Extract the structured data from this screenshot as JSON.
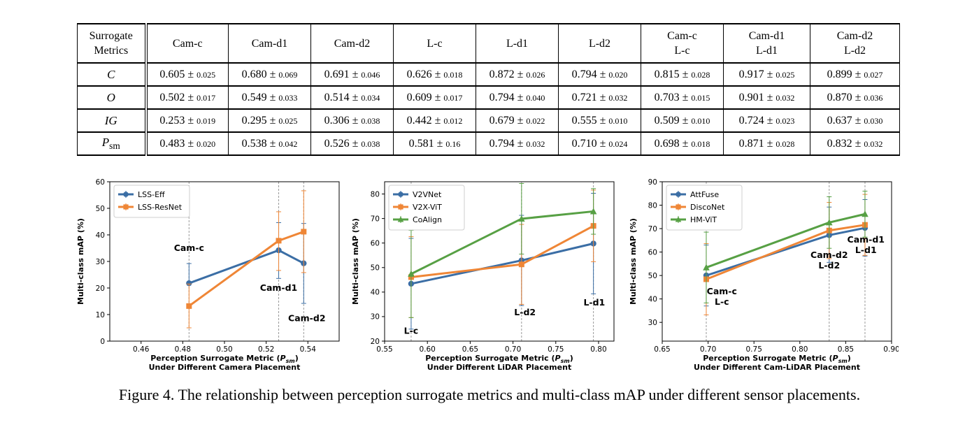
{
  "table": {
    "header": {
      "metric_col": [
        "Surrogate",
        "Metrics"
      ],
      "columns": [
        [
          "Cam-c"
        ],
        [
          "Cam-d1"
        ],
        [
          "Cam-d2"
        ],
        [
          "L-c"
        ],
        [
          "L-d1"
        ],
        [
          "L-d2"
        ],
        [
          "Cam-c",
          "L-c"
        ],
        [
          "Cam-d1",
          "L-d1"
        ],
        [
          "Cam-d2",
          "L-d2"
        ]
      ]
    },
    "pm_symbol": "±",
    "rows": [
      {
        "metric": "C",
        "metric_sub": "",
        "cells": [
          {
            "v": "0.605",
            "e": "0.025"
          },
          {
            "v": "0.680",
            "e": "0.069"
          },
          {
            "v": "0.691",
            "e": "0.046"
          },
          {
            "v": "0.626",
            "e": "0.018"
          },
          {
            "v": "0.872",
            "e": "0.026"
          },
          {
            "v": "0.794",
            "e": "0.020"
          },
          {
            "v": "0.815",
            "e": "0.028"
          },
          {
            "v": "0.917",
            "e": "0.025"
          },
          {
            "v": "0.899",
            "e": "0.027"
          }
        ]
      },
      {
        "metric": "O",
        "metric_sub": "",
        "cells": [
          {
            "v": "0.502",
            "e": "0.017"
          },
          {
            "v": "0.549",
            "e": "0.033"
          },
          {
            "v": "0.514",
            "e": "0.034"
          },
          {
            "v": "0.609",
            "e": "0.017"
          },
          {
            "v": "0.794",
            "e": "0.040"
          },
          {
            "v": "0.721",
            "e": "0.032"
          },
          {
            "v": "0.703",
            "e": "0.015"
          },
          {
            "v": "0.901",
            "e": "0.032"
          },
          {
            "v": "0.870",
            "e": "0.036"
          }
        ]
      },
      {
        "metric": "IG",
        "metric_sub": "",
        "cells": [
          {
            "v": "0.253",
            "e": "0.019"
          },
          {
            "v": "0.295",
            "e": "0.025"
          },
          {
            "v": "0.306",
            "e": "0.038"
          },
          {
            "v": "0.442",
            "e": "0.012"
          },
          {
            "v": "0.679",
            "e": "0.022"
          },
          {
            "v": "0.555",
            "e": "0.010"
          },
          {
            "v": "0.509",
            "e": "0.010"
          },
          {
            "v": "0.724",
            "e": "0.023"
          },
          {
            "v": "0.637",
            "e": "0.030"
          }
        ]
      },
      {
        "metric": "P",
        "metric_sub": "sm",
        "cells": [
          {
            "v": "0.483",
            "e": "0.020"
          },
          {
            "v": "0.538",
            "e": "0.042"
          },
          {
            "v": "0.526",
            "e": "0.038"
          },
          {
            "v": "0.581",
            "e": "0.16"
          },
          {
            "v": "0.794",
            "e": "0.032"
          },
          {
            "v": "0.710",
            "e": "0.024"
          },
          {
            "v": "0.698",
            "e": "0.018"
          },
          {
            "v": "0.871",
            "e": "0.028"
          },
          {
            "v": "0.832",
            "e": "0.032"
          }
        ]
      }
    ]
  },
  "chart_data": [
    {
      "type": "line",
      "ylabel": "Multi-class mAP (%)",
      "xlabel_line1_pre": "Perception Surrogate Metric (",
      "xlabel_sym": "P",
      "xlabel_sub": "sm",
      "xlabel_line1_post": ")",
      "xlabel_line2": "Under Different Camera Placement",
      "xlim": [
        0.445,
        0.555
      ],
      "ylim": [
        0,
        60
      ],
      "xticks": [
        0.46,
        0.48,
        0.5,
        0.52,
        0.54
      ],
      "xtick_labels": [
        "0.46",
        "0.48",
        "0.50",
        "0.52",
        "0.54"
      ],
      "yticks": [
        0,
        10,
        20,
        30,
        40,
        50,
        60
      ],
      "ytick_labels": [
        "0",
        "10",
        "20",
        "30",
        "40",
        "50",
        "60"
      ],
      "vlines": [
        0.483,
        0.526,
        0.538
      ],
      "legend_position": "top-left",
      "annotations": [
        {
          "text": [
            "Cam-c"
          ],
          "x": 0.483,
          "y": 34
        },
        {
          "text": [
            "Cam-d1"
          ],
          "x": 0.526,
          "y": 19
        },
        {
          "text": [
            "Cam-d2"
          ],
          "x": 0.5395,
          "y": 7.5
        }
      ],
      "series": [
        {
          "name": "LSS-Eff",
          "color": "#3b6ea5",
          "marker": "circle",
          "x": [
            0.483,
            0.526,
            0.538
          ],
          "y": [
            21.8,
            34.2,
            29.3
          ],
          "err_low": [
            21.4,
            23.6,
            14.2
          ],
          "err_high": [
            29.2,
            44.6,
            44.3
          ]
        },
        {
          "name": "LSS-ResNet",
          "color": "#ef8636",
          "marker": "square",
          "x": [
            0.483,
            0.526,
            0.538
          ],
          "y": [
            13.2,
            37.8,
            41.2
          ],
          "err_low": [
            5.0,
            26.6,
            25.8
          ],
          "err_high": [
            21.5,
            48.7,
            56.6
          ]
        }
      ]
    },
    {
      "type": "line",
      "ylabel": "Multi-class mAP (%)",
      "xlabel_line1_pre": "Perception Surrogate Metric (",
      "xlabel_sym": "P",
      "xlabel_sub": "sm",
      "xlabel_line1_post": ")",
      "xlabel_line2": "Under Different LiDAR Placement",
      "xlim": [
        0.55,
        0.818
      ],
      "ylim": [
        20,
        85
      ],
      "xticks": [
        0.55,
        0.6,
        0.65,
        0.7,
        0.75,
        0.8
      ],
      "xtick_labels": [
        "0.55",
        "0.60",
        "0.65",
        "0.70",
        "0.75",
        "0.80"
      ],
      "yticks": [
        20,
        30,
        40,
        50,
        60,
        70,
        80
      ],
      "ytick_labels": [
        "20",
        "30",
        "40",
        "50",
        "60",
        "70",
        "80"
      ],
      "vlines": [
        0.581,
        0.71,
        0.794
      ],
      "legend_position": "top-left",
      "annotations": [
        {
          "text": [
            "L-c"
          ],
          "x": 0.581,
          "y": 23
        },
        {
          "text": [
            "L-d2"
          ],
          "x": 0.714,
          "y": 30.5
        },
        {
          "text": [
            "L-d1"
          ],
          "x": 0.795,
          "y": 34.5
        }
      ],
      "series": [
        {
          "name": "V2VNet",
          "color": "#3b6ea5",
          "marker": "circle",
          "x": [
            0.581,
            0.71,
            0.794
          ],
          "y": [
            43.4,
            52.9,
            59.8
          ],
          "err_low": [
            24.9,
            34.5,
            39.3
          ],
          "err_high": [
            61.9,
            71.3,
            80.3
          ]
        },
        {
          "name": "V2X-ViT",
          "color": "#ef8636",
          "marker": "square",
          "x": [
            0.581,
            0.71,
            0.794
          ],
          "y": [
            46.1,
            51.3,
            67.0
          ],
          "err_low": [
            29.6,
            35.0,
            52.4
          ],
          "err_high": [
            62.6,
            67.6,
            81.6
          ]
        },
        {
          "name": "CoAlign",
          "color": "#57a044",
          "marker": "triangle",
          "x": [
            0.581,
            0.71,
            0.794
          ],
          "y": [
            47.4,
            69.9,
            72.9
          ],
          "err_low": [
            29.6,
            55.5,
            63.6
          ],
          "err_high": [
            65.2,
            84.3,
            82.2
          ]
        }
      ]
    },
    {
      "type": "line",
      "ylabel": "Multi-class mAP (%)",
      "xlabel_line1_pre": "Perception Surrogate Metric (",
      "xlabel_sym": "P",
      "xlabel_sub": "sm",
      "xlabel_line1_post": ")",
      "xlabel_line2": "Under Different Cam-LiDAR Placement",
      "xlim": [
        0.65,
        0.9
      ],
      "ylim": [
        22,
        90
      ],
      "xticks": [
        0.65,
        0.7,
        0.75,
        0.8,
        0.85,
        0.9
      ],
      "xtick_labels": [
        "0.65",
        "0.70",
        "0.75",
        "0.80",
        "0.85",
        "0.90"
      ],
      "yticks": [
        30,
        40,
        50,
        60,
        70,
        80,
        90
      ],
      "ytick_labels": [
        "30",
        "40",
        "50",
        "60",
        "70",
        "80",
        "90"
      ],
      "vlines": [
        0.698,
        0.832,
        0.871
      ],
      "legend_position": "top-left",
      "annotations": [
        {
          "text": [
            "Cam-c",
            "L-c"
          ],
          "x": 0.715,
          "y": 42
        },
        {
          "text": [
            "Cam-d2",
            "L-d2"
          ],
          "x": 0.832,
          "y": 57.5
        },
        {
          "text": [
            "Cam-d1",
            "L-d1"
          ],
          "x": 0.872,
          "y": 64
        }
      ],
      "series": [
        {
          "name": "AttFuse",
          "color": "#3b6ea5",
          "marker": "circle",
          "x": [
            0.698,
            0.832,
            0.871
          ],
          "y": [
            50.0,
            67.2,
            70.3
          ],
          "err_low": [
            37.0,
            55.6,
            58.3
          ],
          "err_high": [
            63.0,
            79.2,
            82.4
          ]
        },
        {
          "name": "DiscoNet",
          "color": "#ef8636",
          "marker": "square",
          "x": [
            0.698,
            0.832,
            0.871
          ],
          "y": [
            48.4,
            69.2,
            71.6
          ],
          "err_low": [
            33.2,
            57.2,
            58.6
          ],
          "err_high": [
            63.6,
            81.2,
            84.6
          ]
        },
        {
          "name": "HM-ViT",
          "color": "#57a044",
          "marker": "triangle",
          "x": [
            0.698,
            0.832,
            0.871
          ],
          "y": [
            53.4,
            72.6,
            76.2
          ],
          "err_low": [
            38.3,
            61.6,
            66.4
          ],
          "err_high": [
            68.5,
            83.6,
            86.0
          ]
        }
      ]
    }
  ],
  "caption": "Figure 4. The relationship between perception surrogate metrics and multi-class mAP under different sensor placements."
}
